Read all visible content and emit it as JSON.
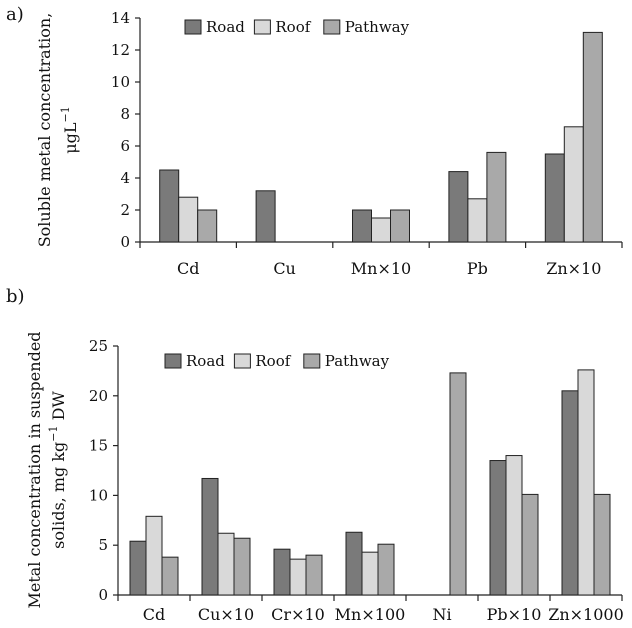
{
  "panels": [
    {
      "tag": "a)",
      "ylabel_line1": "Soluble metal concentration,",
      "ylabel_line2_unit": "μgL",
      "ylabel_line2_exp": "−1"
    },
    {
      "tag": "b)",
      "ylabel_line1": "Metal concentration in suspended",
      "ylabel_line2_unit": "solids, mg kg",
      "ylabel_line2_exp": "−1",
      "ylabel_line2_suffix": " DW"
    }
  ],
  "colors": {
    "Road": "#7a7a7a",
    "Roof": "#d9d9d9",
    "Pathway": "#a9a9a9"
  },
  "chart_data": [
    {
      "type": "bar",
      "categories": [
        "Cd",
        "Cu",
        "Mn×10",
        "Pb",
        "Zn×10"
      ],
      "series": [
        {
          "name": "Road",
          "values": [
            4.5,
            3.2,
            2.0,
            4.4,
            5.5
          ]
        },
        {
          "name": "Roof",
          "values": [
            2.8,
            null,
            1.5,
            2.7,
            7.2
          ]
        },
        {
          "name": "Pathway",
          "values": [
            2.0,
            null,
            2.0,
            5.6,
            13.1
          ]
        }
      ],
      "ylim": [
        0,
        14
      ],
      "yticks": [
        0,
        2,
        4,
        6,
        8,
        10,
        12,
        14
      ],
      "xlabel": "",
      "ylabel": "Soluble metal concentration, μgL−1",
      "legend": "top-left",
      "grid": false
    },
    {
      "type": "bar",
      "categories": [
        "Cd",
        "Cu×10",
        "Cr×10",
        "Mn×100",
        "Ni",
        "Pb×10",
        "Zn×1000"
      ],
      "series": [
        {
          "name": "Road",
          "values": [
            5.4,
            11.7,
            4.6,
            6.3,
            null,
            13.5,
            20.5
          ]
        },
        {
          "name": "Roof",
          "values": [
            7.9,
            6.2,
            3.6,
            4.3,
            null,
            14.0,
            22.6
          ]
        },
        {
          "name": "Pathway",
          "values": [
            3.8,
            5.7,
            4.0,
            5.1,
            22.3,
            10.1,
            10.1
          ]
        }
      ],
      "ylim": [
        0,
        25
      ],
      "yticks": [
        0,
        5,
        10,
        15,
        20,
        25
      ],
      "xlabel": "",
      "ylabel": "Metal concentration in suspended solids, mg kg−1 DW",
      "legend": "top-left",
      "grid": false
    }
  ]
}
